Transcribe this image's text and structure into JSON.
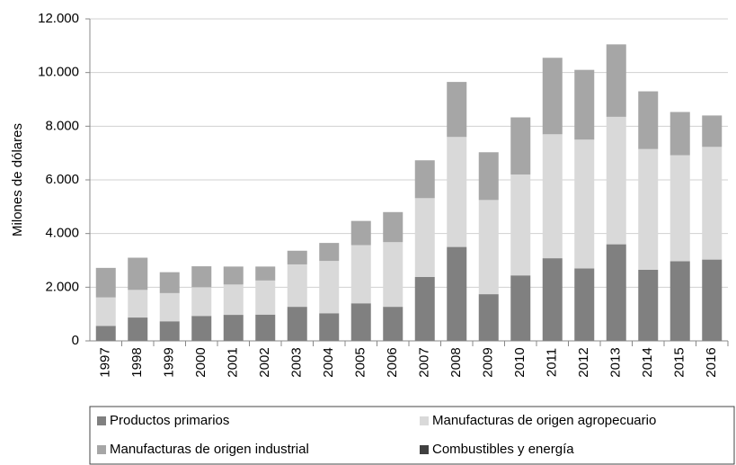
{
  "chart_data": {
    "type": "stacked_bar",
    "y_label": "Milones de dólares",
    "categories": [
      "1997",
      "1998",
      "1999",
      "2000",
      "2001",
      "2002",
      "2003",
      "2004",
      "2005",
      "2006",
      "2007",
      "2008",
      "2009",
      "2010",
      "2011",
      "2012",
      "2013",
      "2014",
      "2015",
      "2016"
    ],
    "series": [
      {
        "name": "Productos primarios",
        "color": "#808080",
        "values": [
          560,
          870,
          730,
          930,
          970,
          980,
          1270,
          1030,
          1400,
          1270,
          2380,
          3500,
          1740,
          2440,
          3080,
          2700,
          3600,
          2650,
          2970,
          3030
        ]
      },
      {
        "name": "Manufacturas de origen agropecuario",
        "color": "#d9d9d9",
        "values": [
          1060,
          1030,
          1050,
          1070,
          1130,
          1270,
          1580,
          1950,
          2170,
          2410,
          2940,
          4100,
          3510,
          3760,
          4620,
          4800,
          4750,
          4500,
          3950,
          4200
        ]
      },
      {
        "name": "Manufacturas de origen industrial",
        "color": "#a6a6a6",
        "values": [
          1100,
          1200,
          780,
          780,
          670,
          520,
          510,
          670,
          900,
          1120,
          1410,
          2050,
          1780,
          2130,
          2850,
          2600,
          2700,
          2150,
          1610,
          1170
        ]
      },
      {
        "name": "Combustibles y energía",
        "color": "#404040",
        "values": [
          0,
          0,
          0,
          0,
          0,
          0,
          0,
          0,
          0,
          0,
          0,
          0,
          0,
          0,
          0,
          0,
          0,
          0,
          0,
          0
        ]
      }
    ],
    "ylim": [
      0,
      12000
    ],
    "yticks": [
      0,
      {
        "value": 2000,
        "label": "2.000"
      },
      {
        "value": 4000,
        "label": "4.000"
      },
      {
        "value": 6000,
        "label": "6.000"
      },
      {
        "value": 8000,
        "label": "8.000"
      },
      {
        "value": 10000,
        "label": "10.000"
      },
      {
        "value": 12000,
        "label": "12.000"
      }
    ],
    "grid": true,
    "legend": "bottom"
  }
}
